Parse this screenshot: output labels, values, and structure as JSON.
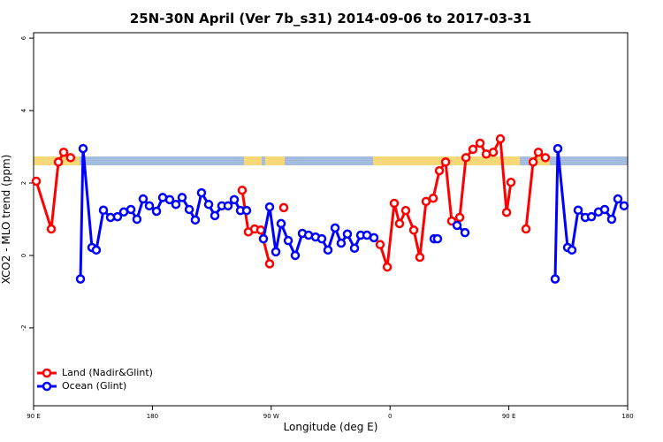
{
  "chart_data": {
    "type": "line",
    "title": "25N-30N April (Ver 7b_s31)   2014-09-06 to 2017-03-31",
    "xlabel": "Longitude (deg E)",
    "ylabel": "XCO2 - MLO trend (ppm)",
    "xlim": [
      90,
      540
    ],
    "ylim": [
      -4.15,
      6.15
    ],
    "xticks": [
      {
        "value": 90,
        "label": "90 E"
      },
      180,
      {
        "value": 270,
        "label": "90 W"
      },
      {
        "value": 360,
        "label": "0"
      },
      {
        "value": 450,
        "label": "90 E"
      },
      {
        "value": 540,
        "label": "180"
      }
    ],
    "yticks": [
      -2,
      0,
      2,
      4,
      6
    ],
    "legend": "bottom-left",
    "series": [
      {
        "name": "Land (Nadir&Glint)",
        "color": "#ff0000",
        "x": [
          92,
          103.4,
          108.8,
          112.8,
          118,
          null,
          248,
          252.7,
          257.4,
          262.1,
          268.8,
          null,
          279.5,
          null,
          352.5,
          357.9,
          363.2,
          367.2,
          371.9,
          378,
          382.6,
          387.3,
          392.7,
          397.4,
          402.1,
          406.7,
          412.8,
          417.5,
          422.8,
          428.2,
          432.9,
          438.2,
          443.6,
          448.3,
          451.6,
          null,
          463,
          468.4,
          472.4,
          477.7
        ],
        "values": [
          2.05,
          0.73,
          2.58,
          2.85,
          2.7,
          null,
          1.8,
          0.65,
          0.73,
          0.7,
          -0.23,
          null,
          1.32,
          null,
          0.3,
          -0.32,
          1.44,
          0.88,
          1.24,
          0.7,
          -0.05,
          1.49,
          1.58,
          2.34,
          2.58,
          0.95,
          1.05,
          2.7,
          2.93,
          3.1,
          2.8,
          2.85,
          3.22,
          1.19,
          2.02,
          null,
          0.73,
          2.58,
          2.85,
          2.7
        ]
      },
      {
        "name": "Ocean (Glint)",
        "color": "#0000ff",
        "x": [
          125.5,
          127.5,
          134.2,
          137.5,
          142.9,
          148.3,
          153.6,
          158.3,
          163.7,
          168.3,
          173,
          177.7,
          183.1,
          187.8,
          193.1,
          197.8,
          202.5,
          207.9,
          212.5,
          217.2,
          222.6,
          227.3,
          232.6,
          237.3,
          242,
          246.7,
          251.4,
          null,
          264.1,
          268.8,
          273.5,
          277.5,
          282.9,
          288.2,
          293.6,
          298.3,
          303.6,
          308.3,
          313,
          318.4,
          323,
          327.7,
          333.1,
          337.8,
          342.5,
          347.8,
          null,
          393.4,
          396,
          null,
          410.8,
          416.8,
          null,
          485.1,
          487.1,
          494.5,
          497.8,
          502.5,
          507.9,
          512.6,
          517.9,
          522.6,
          527.9,
          532.6,
          537.3
        ],
        "values": [
          -0.65,
          2.95,
          0.22,
          0.15,
          1.25,
          1.05,
          1.07,
          1.2,
          1.27,
          1.0,
          1.56,
          1.37,
          1.22,
          1.6,
          1.54,
          1.41,
          1.6,
          1.27,
          0.98,
          1.73,
          1.41,
          1.1,
          1.37,
          1.37,
          1.54,
          1.24,
          1.24,
          null,
          0.46,
          1.34,
          0.1,
          0.88,
          0.41,
          0,
          0.61,
          0.56,
          0.51,
          0.46,
          0.15,
          0.76,
          0.34,
          0.59,
          0.2,
          0.56,
          0.56,
          0.49,
          null,
          0.46,
          0.46,
          null,
          0.83,
          0.63,
          null,
          -0.65,
          2.95,
          0.22,
          0.15,
          1.25,
          1.05,
          1.07,
          1.2,
          1.27,
          1.0,
          1.56,
          1.37
        ]
      }
    ]
  }
}
